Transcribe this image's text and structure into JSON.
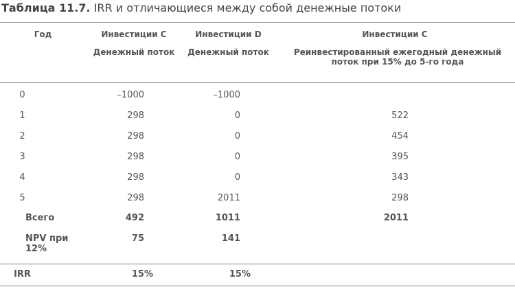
{
  "title": {
    "label": "Таблица 11.7.",
    "text": "IRR и отличающиеся между собой денежные потоки"
  },
  "table": {
    "columns": [
      {
        "top": "Год"
      },
      {
        "top": "Инвестиции C",
        "sub": "Денежный поток"
      },
      {
        "top": "Инвестиции D",
        "sub": "Денежный поток"
      },
      {
        "top": "Инвестиции C",
        "sub": "Реинвестированный ежегодный денежный поток при 15% до 5-го года"
      }
    ],
    "rows": [
      [
        "0",
        "–1000",
        "–1000"
      ],
      [
        "1",
        "298",
        "0",
        "522"
      ],
      [
        "2",
        "298",
        "0",
        "454"
      ],
      [
        "3",
        "298",
        "0",
        "395"
      ],
      [
        "4",
        "298",
        "0",
        "343"
      ],
      [
        "5",
        "298",
        "2011",
        "298"
      ]
    ],
    "totals": [
      [
        "Всего",
        "492",
        "1011",
        "2011"
      ],
      [
        "NPV при 12%",
        "75",
        "141"
      ]
    ],
    "irr": [
      "IRR",
      "15%",
      "15%"
    ]
  }
}
